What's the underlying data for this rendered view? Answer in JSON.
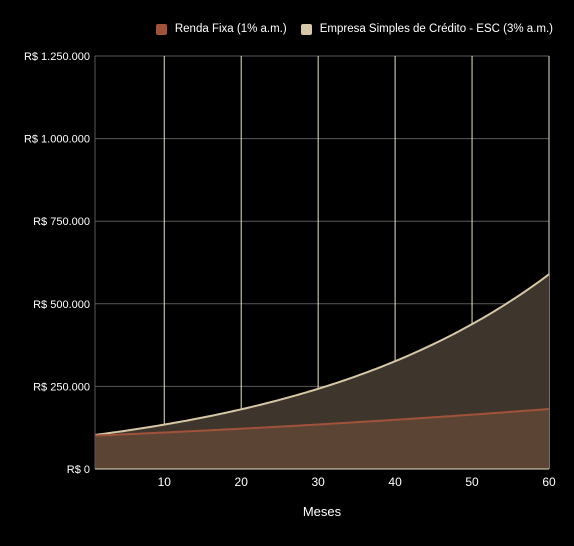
{
  "chart_data": {
    "type": "area",
    "xlabel": "Meses",
    "ylabel": "",
    "xlim": [
      1,
      60
    ],
    "ylim": [
      0,
      1250000
    ],
    "x_ticks": [
      10,
      20,
      30,
      40,
      50,
      60
    ],
    "y_ticks": [
      0,
      250000,
      500000,
      750000,
      1000000,
      1250000
    ],
    "y_tick_labels": [
      "R$ 0",
      "R$ 250.000",
      "R$ 500.000",
      "R$ 750.000",
      "R$ 1.000.000",
      "R$ 1.250.000"
    ],
    "grid": true,
    "legend_position": "top-right",
    "x": [
      1,
      5,
      10,
      15,
      20,
      25,
      30,
      35,
      40,
      45,
      50,
      55,
      60
    ],
    "series": [
      {
        "name": "Renda Fixa (1% a.m.)",
        "color": "#a0523a",
        "fill": "#5c4434",
        "values": [
          101000,
          105100,
          110500,
          116100,
          122000,
          128200,
          134800,
          141700,
          148900,
          156500,
          164500,
          172900,
          181700
        ]
      },
      {
        "name": "Empresa Simples de Crédito - ESC (3% a.m.)",
        "color": "#d6c7a6",
        "fill": "#3e362c",
        "values": [
          103000,
          115900,
          134400,
          155800,
          180600,
          209400,
          242700,
          281400,
          326200,
          378200,
          438400,
          508200,
          589200
        ]
      }
    ]
  }
}
